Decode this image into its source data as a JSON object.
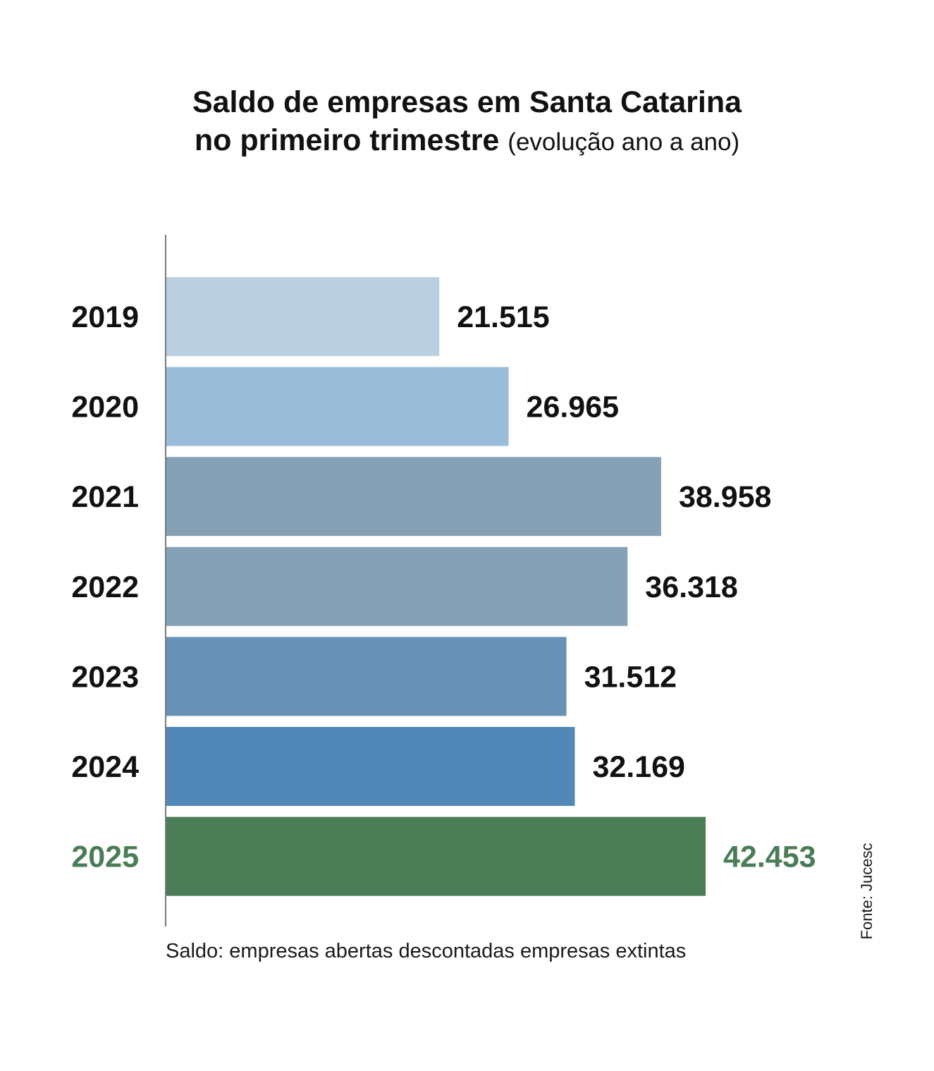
{
  "title": {
    "line1": "Saldo de empresas em Santa Catarina",
    "line2": "no primeiro trimestre",
    "subtitle": "(evolução ano a ano)"
  },
  "note": "Saldo: empresas abertas descontadas empresas extintas",
  "source": "Fonte: Jucesc",
  "colors": {
    "text": "#111111",
    "highlight": "#4a7c55",
    "axis": "#7a7a7a"
  },
  "chart_data": {
    "type": "bar",
    "orientation": "horizontal",
    "categories": [
      "2019",
      "2020",
      "2021",
      "2022",
      "2023",
      "2024",
      "2025"
    ],
    "values": [
      21515,
      26965,
      38958,
      36318,
      31512,
      32169,
      42453
    ],
    "value_labels": [
      "21.515",
      "26.965",
      "38.958",
      "36.318",
      "31.512",
      "32.169",
      "42.453"
    ],
    "bar_colors": [
      "#bacfdf",
      "#99bcd9",
      "#86a1b5",
      "#86a1b5",
      "#6792b5",
      "#5188b7",
      "#4a7c55"
    ],
    "highlight_index": 6,
    "xlim": [
      0,
      42453
    ],
    "grid": false,
    "legend": "none"
  }
}
